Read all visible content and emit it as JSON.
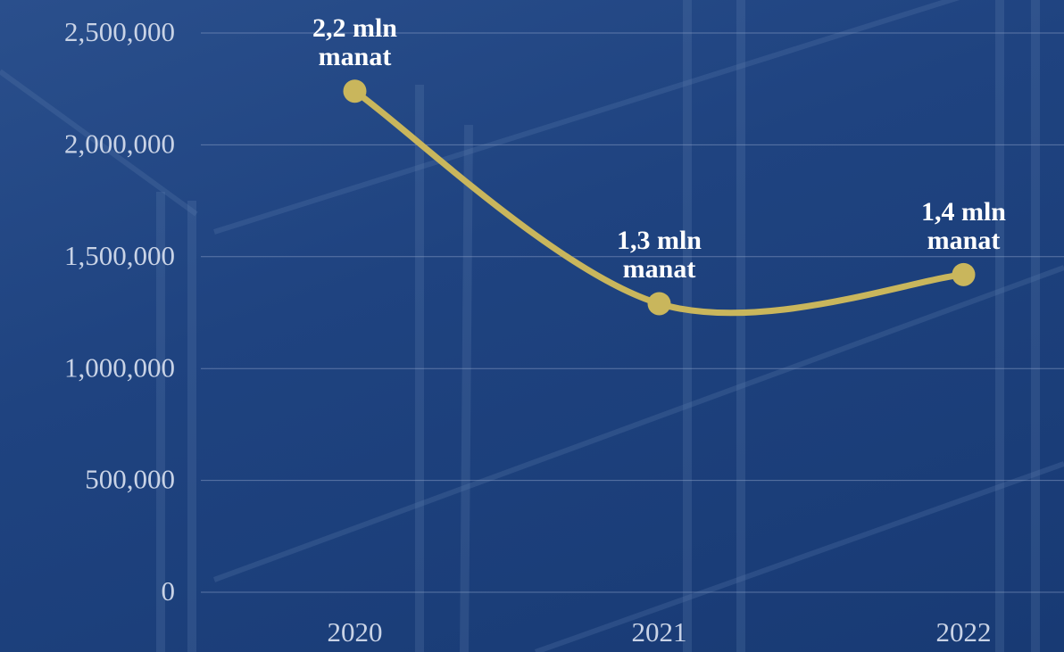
{
  "chart_data": {
    "type": "line",
    "categories": [
      "2020",
      "2021",
      "2022"
    ],
    "values": [
      2240000,
      1290000,
      1420000
    ],
    "value_labels": [
      "2,2 mln manat",
      "1,3 mln manat",
      "1,4 mln manat"
    ],
    "color": "#c9b65c",
    "ylim": [
      0,
      2500000
    ],
    "yticks": [
      0,
      {
        "value": 500000,
        "label": "500,000"
      },
      {
        "value": 1000000,
        "label": "1,000,000"
      },
      {
        "value": 1500000,
        "label": "1,500,000"
      },
      {
        "value": 2000000,
        "label": "2,000,000"
      },
      {
        "value": 2500000,
        "label": "2,500,000"
      }
    ],
    "grid": true
  }
}
